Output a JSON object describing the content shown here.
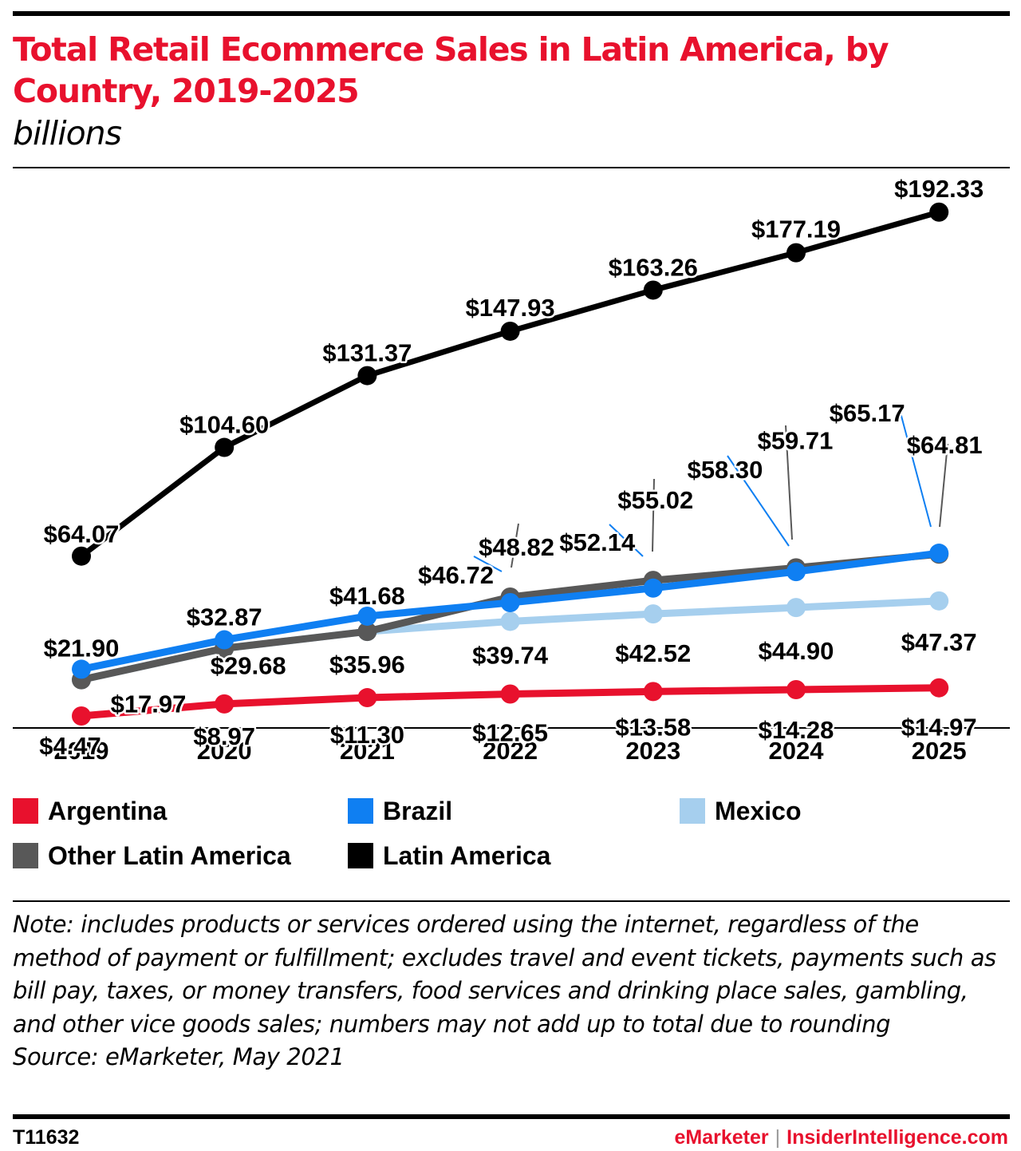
{
  "header": {
    "title": "Total Retail Ecommerce Sales in Latin America, by Country, 2019-2025",
    "subtitle": "billions"
  },
  "chart_data": {
    "type": "line",
    "title": "Total Retail Ecommerce Sales in Latin America, by Country, 2019-2025",
    "subtitle": "billions",
    "categories": [
      "2019",
      "2020",
      "2021",
      "2022",
      "2023",
      "2024",
      "2025"
    ],
    "ylim": [
      0,
      200
    ],
    "grid": false,
    "legend_position": "bottom",
    "series": [
      {
        "name": "Latin America",
        "color": "#000000",
        "values": [
          64.07,
          104.6,
          131.37,
          147.93,
          163.26,
          177.19,
          192.33
        ],
        "labels": [
          "$64.07",
          "$104.60",
          "$131.37",
          "$147.93",
          "$163.26",
          "$177.19",
          "$192.33"
        ]
      },
      {
        "name": "Other Latin America",
        "color": "#585858",
        "values": [
          17.97,
          29.68,
          35.96,
          48.82,
          55.02,
          59.71,
          64.81
        ],
        "labels": [
          "",
          "",
          "",
          "$48.82",
          "$55.02",
          "$59.71",
          "$64.81"
        ]
      },
      {
        "name": "Mexico",
        "color": "#a6cfee",
        "values": [
          17.97,
          29.68,
          35.96,
          39.74,
          42.52,
          44.9,
          47.37
        ],
        "labels": [
          "$17.97",
          "$29.68",
          "$35.96",
          "$39.74",
          "$42.52",
          "$44.90",
          "$47.37"
        ]
      },
      {
        "name": "Brazil",
        "color": "#0f7ff2",
        "values": [
          21.9,
          32.87,
          41.68,
          46.72,
          52.14,
          58.3,
          65.17
        ],
        "labels": [
          "$21.90",
          "$32.87",
          "$41.68",
          "$46.72",
          "$52.14",
          "$58.30",
          "$65.17"
        ]
      },
      {
        "name": "Argentina",
        "color": "#e8112d",
        "values": [
          4.47,
          8.97,
          11.3,
          12.65,
          13.58,
          14.28,
          14.97
        ],
        "labels": [
          "$4.47",
          "$8.97",
          "$11.30",
          "$12.65",
          "$13.58",
          "$14.28",
          "$14.97"
        ]
      }
    ]
  },
  "legend": [
    {
      "label": "Argentina",
      "color": "#e8112d"
    },
    {
      "label": "Brazil",
      "color": "#0f7ff2"
    },
    {
      "label": "Mexico",
      "color": "#a6cfee"
    },
    {
      "label": "Other Latin America",
      "color": "#585858"
    },
    {
      "label": "Latin America",
      "color": "#000000"
    }
  ],
  "note": "Note: includes products or services ordered using the internet, regardless of the method of payment or fulfillment; excludes travel and event tickets, payments such as bill pay, taxes, or money transfers, food services and drinking place sales, gambling, and other vice goods sales; numbers may not add up to total due to rounding",
  "source": "Source: eMarketer, May 2021",
  "footer": {
    "chart_id": "T11632",
    "brand_primary": "eMarketer",
    "separator": "|",
    "brand_secondary": "InsiderIntelligence.com"
  }
}
